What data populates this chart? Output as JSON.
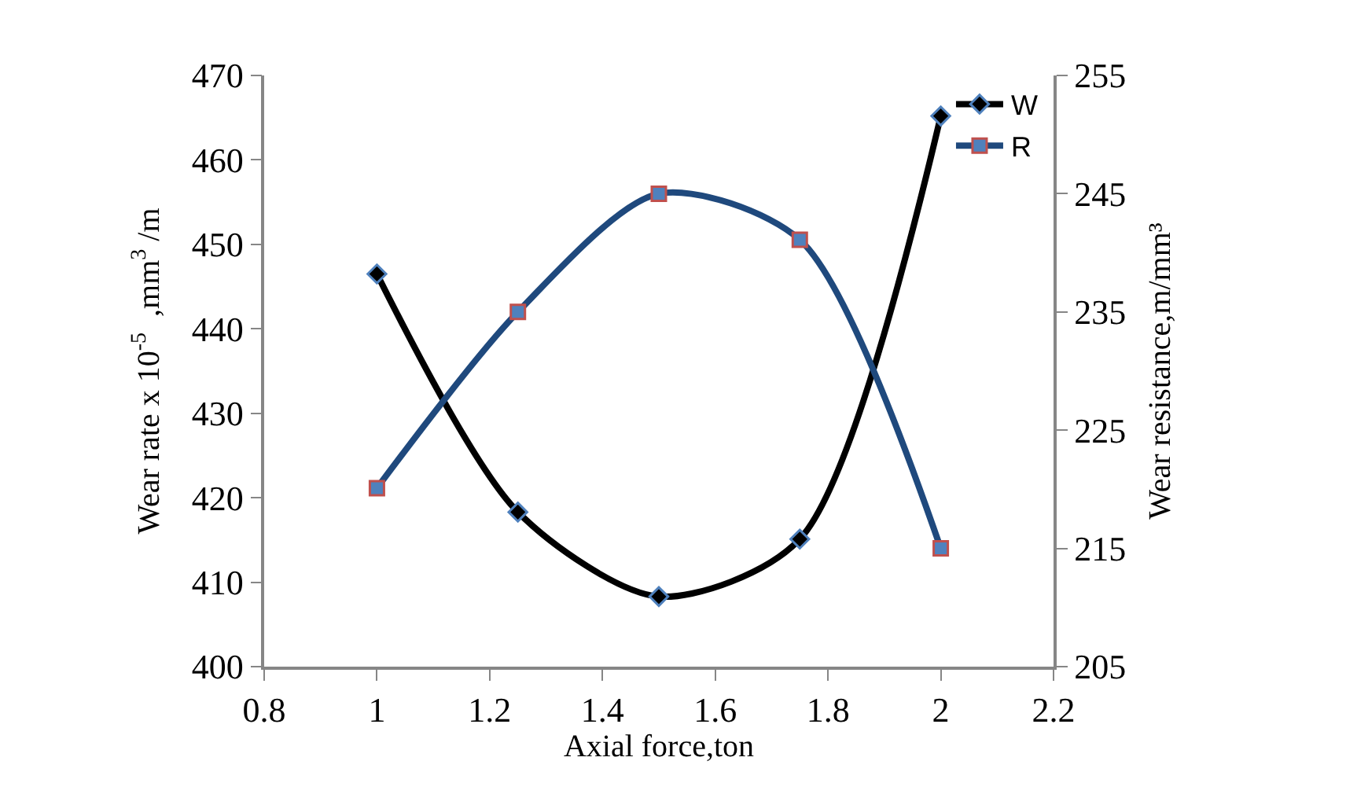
{
  "chart_data": {
    "type": "line",
    "xlabel": "Axial force,ton",
    "ylabel": "Wear rate x 10$^{-5}$  ,mm$^{3}$ /m",
    "y2label": "Wear resistance,m/mm³",
    "x": [
      1,
      1.25,
      1.5,
      1.75,
      2
    ],
    "series": [
      {
        "name": "W",
        "color": "#000000",
        "marker": "diamond",
        "values": [
          446.5,
          418.3,
          408.3,
          415.1,
          465.2
        ]
      },
      {
        "name": "R",
        "color": "#1f497d",
        "marker": "square",
        "axis": "y2",
        "values": [
          220.1,
          235.0,
          245.0,
          241.1,
          215.0
        ]
      }
    ],
    "xlim": [
      0.8,
      2.2
    ],
    "xticks": [
      0.8,
      1,
      1.2,
      1.4,
      1.6,
      1.8,
      2,
      2.2
    ],
    "ylim": [
      400,
      470
    ],
    "yticks": [
      400,
      410,
      420,
      430,
      440,
      450,
      460,
      470
    ],
    "y2lim": [
      205,
      255
    ],
    "y2ticks": [
      205,
      215,
      225,
      235,
      245,
      255
    ],
    "legend": "top right",
    "line_style": "solid"
  }
}
